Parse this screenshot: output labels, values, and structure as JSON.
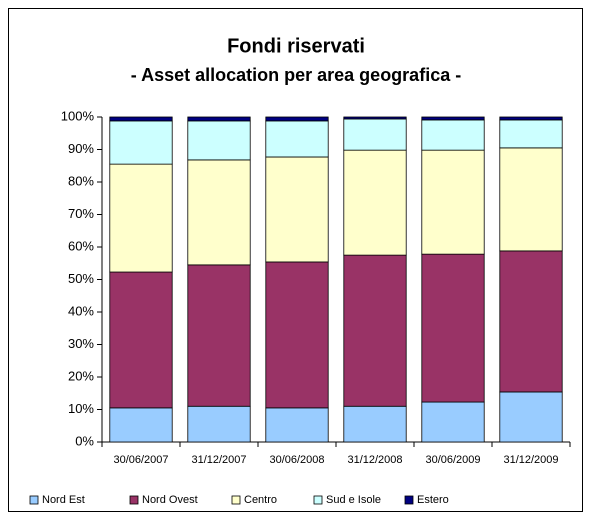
{
  "chart_data": {
    "type": "stacked_bar",
    "title": "Fondi riservati",
    "subtitle": "- Asset allocation per area geografica -",
    "categories": [
      "30/06/2007",
      "31/12/2007",
      "30/06/2008",
      "31/12/2008",
      "30/06/2009",
      "31/12/2009"
    ],
    "series": [
      {
        "name": "Nord Est",
        "color": "#99ccff",
        "values": [
          10.5,
          11,
          10.5,
          11,
          12.3,
          15.4
        ]
      },
      {
        "name": "Nord Ovest",
        "color": "#993366",
        "values": [
          41.8,
          43.5,
          44.9,
          46.5,
          45.5,
          43.4
        ]
      },
      {
        "name": "Centro",
        "color": "#ffffcc",
        "values": [
          33.2,
          32.3,
          32.3,
          32.3,
          32,
          31.7
        ]
      },
      {
        "name": "Sud e Isole",
        "color": "#ccffff",
        "values": [
          13.3,
          12,
          11.1,
          9.6,
          9.3,
          8.6
        ]
      },
      {
        "name": "Estero",
        "color": "#000080",
        "values": [
          1.2,
          1.2,
          1.2,
          0.6,
          0.9,
          0.9
        ]
      }
    ],
    "ylim": [
      0,
      100
    ],
    "yticks": [
      {
        "value": 0,
        "label": "0%"
      },
      {
        "value": 10,
        "label": "10%"
      },
      {
        "value": 20,
        "label": "20%"
      },
      {
        "value": 30,
        "label": "30%"
      },
      {
        "value": 40,
        "label": "40%"
      },
      {
        "value": 50,
        "label": "50%"
      },
      {
        "value": 60,
        "label": "60%"
      },
      {
        "value": 70,
        "label": "70%"
      },
      {
        "value": 80,
        "label": "80%"
      },
      {
        "value": 90,
        "label": "90%"
      },
      {
        "value": 100,
        "label": "100%"
      }
    ],
    "legend": "bottom"
  }
}
